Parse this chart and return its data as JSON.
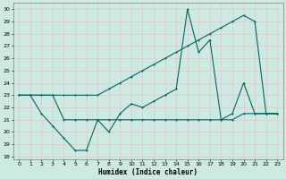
{
  "xlabel": "Humidex (Indice chaleur)",
  "xlim": [
    -0.5,
    23.5
  ],
  "ylim": [
    17.8,
    30.5
  ],
  "yticks": [
    18,
    19,
    20,
    21,
    22,
    23,
    24,
    25,
    26,
    27,
    28,
    29,
    30
  ],
  "xticks": [
    0,
    1,
    2,
    3,
    4,
    5,
    6,
    7,
    8,
    9,
    10,
    11,
    12,
    13,
    14,
    15,
    16,
    17,
    18,
    19,
    20,
    21,
    22,
    23
  ],
  "bg_color": "#cceae2",
  "grid_color": "#e8c8c8",
  "line_color": "#006666",
  "s1_x": [
    0,
    1,
    2,
    3,
    4,
    5,
    6,
    7,
    8,
    9,
    10,
    11,
    12,
    13,
    14,
    15,
    16,
    17,
    18,
    19,
    20,
    21,
    22,
    23
  ],
  "s1_y": [
    23.0,
    23.0,
    21.5,
    20.5,
    19.5,
    18.5,
    18.5,
    21.0,
    20.0,
    21.5,
    22.3,
    22.0,
    22.5,
    23.0,
    23.5,
    30.0,
    26.5,
    27.5,
    21.0,
    21.5,
    24.0,
    21.5,
    21.5,
    21.5
  ],
  "s2_x": [
    0,
    1,
    2,
    3,
    4,
    5,
    6,
    7,
    8,
    9,
    10,
    11,
    12,
    13,
    14,
    15,
    16,
    17,
    18,
    19,
    20,
    21,
    22,
    23
  ],
  "s2_y": [
    23.0,
    23.0,
    23.0,
    23.0,
    23.0,
    23.0,
    23.0,
    23.0,
    23.5,
    24.0,
    24.5,
    25.0,
    25.5,
    26.0,
    26.5,
    27.0,
    27.5,
    28.0,
    28.5,
    29.0,
    29.5,
    29.0,
    21.5,
    21.5
  ],
  "s3_x": [
    0,
    1,
    2,
    3,
    4,
    5,
    6,
    7,
    8,
    9,
    10,
    11,
    12,
    13,
    14,
    15,
    16,
    17,
    18,
    19,
    20,
    21,
    22,
    23
  ],
  "s3_y": [
    23.0,
    23.0,
    23.0,
    23.0,
    21.0,
    21.0,
    21.0,
    21.0,
    21.0,
    21.0,
    21.0,
    21.0,
    21.0,
    21.0,
    21.0,
    21.0,
    21.0,
    21.0,
    21.0,
    21.0,
    21.5,
    21.5,
    21.5,
    21.5
  ]
}
